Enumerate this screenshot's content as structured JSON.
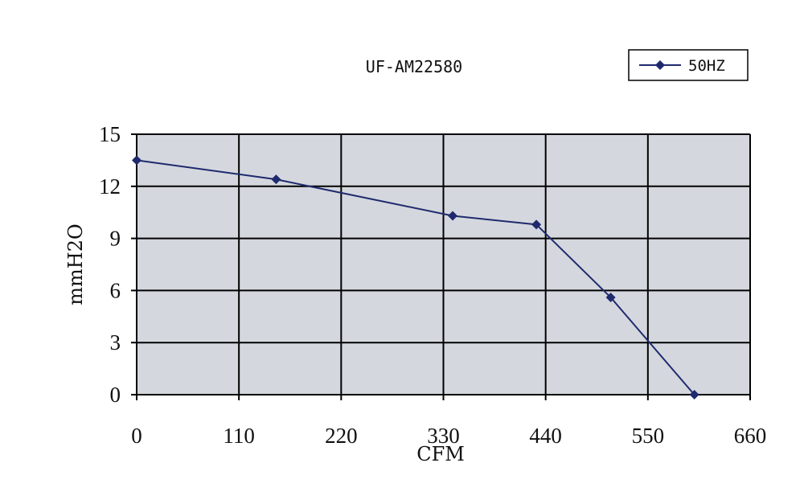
{
  "chart_data": {
    "type": "line",
    "title": "UF-AM22580",
    "xlabel": "CFM",
    "ylabel": "mmH2O",
    "xlim": [
      0,
      660
    ],
    "ylim": [
      0,
      15
    ],
    "xticks": [
      0,
      110,
      220,
      330,
      440,
      550,
      660
    ],
    "yticks": [
      0,
      3,
      6,
      9,
      12,
      15
    ],
    "grid": true,
    "legend_position": "top-right",
    "colors": {
      "plot_background": "#d4d8de",
      "grid": "#000000",
      "series": "#1f2a6e"
    },
    "series": [
      {
        "name": "50HZ",
        "marker": "diamond",
        "x": [
          0,
          150,
          340,
          430,
          510,
          600
        ],
        "y": [
          13.5,
          12.4,
          10.3,
          9.8,
          5.6,
          0
        ]
      }
    ]
  }
}
